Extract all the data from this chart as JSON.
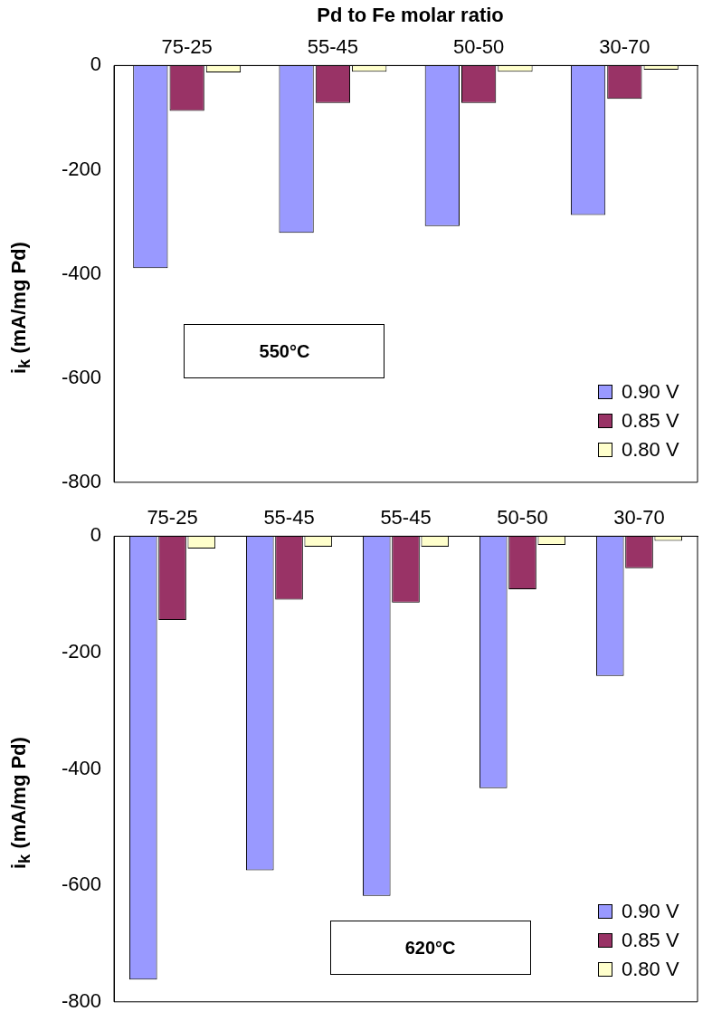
{
  "chart_data": [
    {
      "type": "bar",
      "title": "Pd to Fe molar ratio",
      "ylabel": "i$_{k}$ (mA/mg Pd)",
      "categories": [
        "75-25",
        "55-45",
        "50-50",
        "30-70"
      ],
      "series": [
        {
          "name": "0.90 V",
          "color": "#9999ff",
          "values": [
            -389,
            -321,
            -308,
            -287
          ]
        },
        {
          "name": "0.85 V",
          "color": "#993366",
          "values": [
            -87,
            -72,
            -72,
            -64
          ]
        },
        {
          "name": "0.80 V",
          "color": "#ffffcc",
          "values": [
            -13,
            -12,
            -12,
            -8
          ]
        }
      ],
      "ylim": [
        -800,
        0
      ],
      "yticks": [
        -800,
        -600,
        -400,
        -200,
        0
      ],
      "grid": false,
      "legend": "bottom right",
      "annotations": [
        "550°C"
      ]
    },
    {
      "type": "bar",
      "ylabel": "i$_{k}$ (mA/mg Pd)",
      "categories": [
        "75-25",
        "55-45",
        "55-45",
        "50-50",
        "30-70"
      ],
      "series": [
        {
          "name": "0.90 V",
          "color": "#9999ff",
          "values": [
            -762,
            -574,
            -618,
            -433,
            -240
          ]
        },
        {
          "name": "0.85 V",
          "color": "#993366",
          "values": [
            -144,
            -109,
            -114,
            -91,
            -55
          ]
        },
        {
          "name": "0.80 V",
          "color": "#ffffcc",
          "values": [
            -21,
            -18,
            -18,
            -15,
            -8
          ]
        }
      ],
      "ylim": [
        -800,
        0
      ],
      "yticks": [
        -800,
        -600,
        -400,
        -200,
        0
      ],
      "grid": false,
      "legend": "bottom right",
      "annotations": [
        "620°C"
      ]
    }
  ]
}
